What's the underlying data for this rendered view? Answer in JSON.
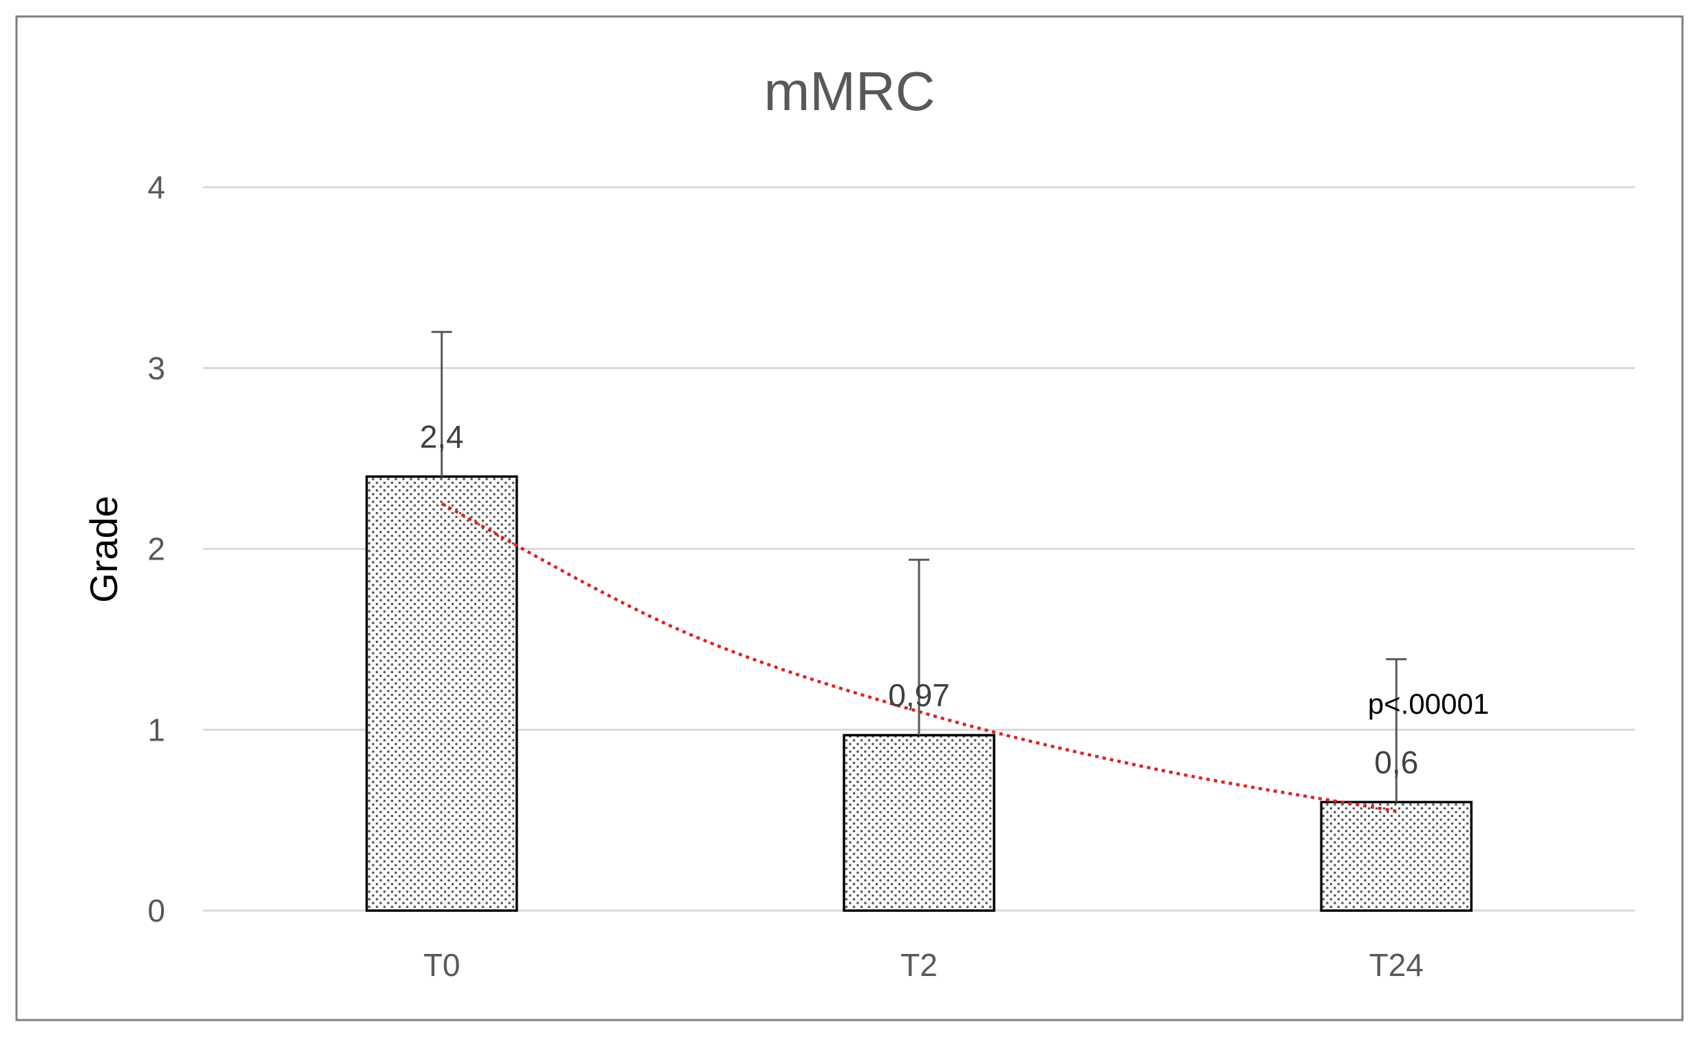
{
  "chart_data": {
    "type": "bar",
    "title": "mMRC",
    "xlabel": "",
    "ylabel": "Grade",
    "categories": [
      "T0",
      "T2",
      "T24"
    ],
    "values": [
      2.4,
      0.97,
      0.6
    ],
    "value_labels": [
      "2,4",
      "0,97",
      "0,6"
    ],
    "error_upper": [
      3.2,
      1.94,
      1.39
    ],
    "ylim": [
      0,
      4
    ],
    "yticks": [
      "0",
      "1",
      "2",
      "3",
      "4"
    ],
    "grid": true,
    "legend": "none",
    "bar_fill": "dotted pattern",
    "trendline": {
      "style": "dotted",
      "color": "#dd2222",
      "x": [
        0,
        0.5,
        1,
        1.5,
        2
      ],
      "y": [
        2.25,
        1.55,
        1.1,
        0.78,
        0.55
      ]
    },
    "annotation": "p<.00001",
    "colors": {
      "grid": "#d9d9d9",
      "axis_text": "#595959",
      "bar_stroke": "#000000",
      "error_bar": "#595959",
      "frame": "#7f7f7f"
    }
  }
}
